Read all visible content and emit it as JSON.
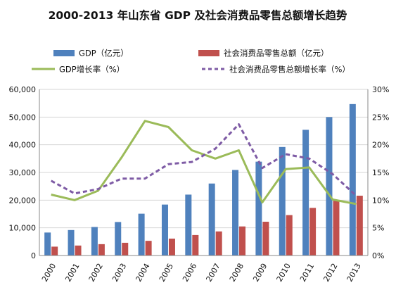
{
  "chart_data": {
    "type": "bar",
    "title": "2000-2013 年山东省 GDP 及社会消费品零售总额增长趋势",
    "categories": [
      "2000",
      "2001",
      "2002",
      "2003",
      "2004",
      "2005",
      "2006",
      "2007",
      "2008",
      "2009",
      "2010",
      "2011",
      "2012",
      "2013"
    ],
    "ylim_left": [
      0,
      60000
    ],
    "ylim_right": [
      0,
      30
    ],
    "yticks_left": [
      "0",
      "10,000",
      "20,000",
      "30,000",
      "40,000",
      "50,000",
      "60,000"
    ],
    "yticks_right": [
      "0%",
      "5%",
      "10%",
      "15%",
      "20%",
      "25%",
      "30%"
    ],
    "grid": true,
    "legend_position": "top",
    "series": [
      {
        "name": "GDP（亿元）",
        "type": "bar",
        "axis": "left",
        "color": "#4F81BD",
        "values": [
          8300,
          9200,
          10300,
          12100,
          15100,
          18400,
          22000,
          26000,
          30900,
          33900,
          39200,
          45400,
          50000,
          54700
        ]
      },
      {
        "name": "社会消费品零售总额（亿元）",
        "type": "bar",
        "axis": "left",
        "color": "#C0504D",
        "values": [
          3200,
          3600,
          4100,
          4600,
          5300,
          6100,
          7400,
          8700,
          10500,
          12200,
          14600,
          17200,
          19800,
          21600
        ]
      },
      {
        "name": "GDP增长率（%）",
        "type": "line",
        "axis": "right",
        "color": "#9BBB59",
        "dashed": false,
        "values": [
          11.0,
          10.0,
          11.7,
          17.7,
          24.3,
          23.2,
          19.0,
          17.5,
          19.0,
          9.6,
          15.6,
          15.9,
          10.1,
          9.3
        ]
      },
      {
        "name": "社会消费品零售总额增长率（%）",
        "type": "line",
        "axis": "right",
        "color": "#7E5BA5",
        "dashed": true,
        "values": [
          13.5,
          11.2,
          12.0,
          13.9,
          13.9,
          16.5,
          16.9,
          19.3,
          23.7,
          15.8,
          18.3,
          17.5,
          14.7,
          10.8
        ]
      }
    ]
  }
}
